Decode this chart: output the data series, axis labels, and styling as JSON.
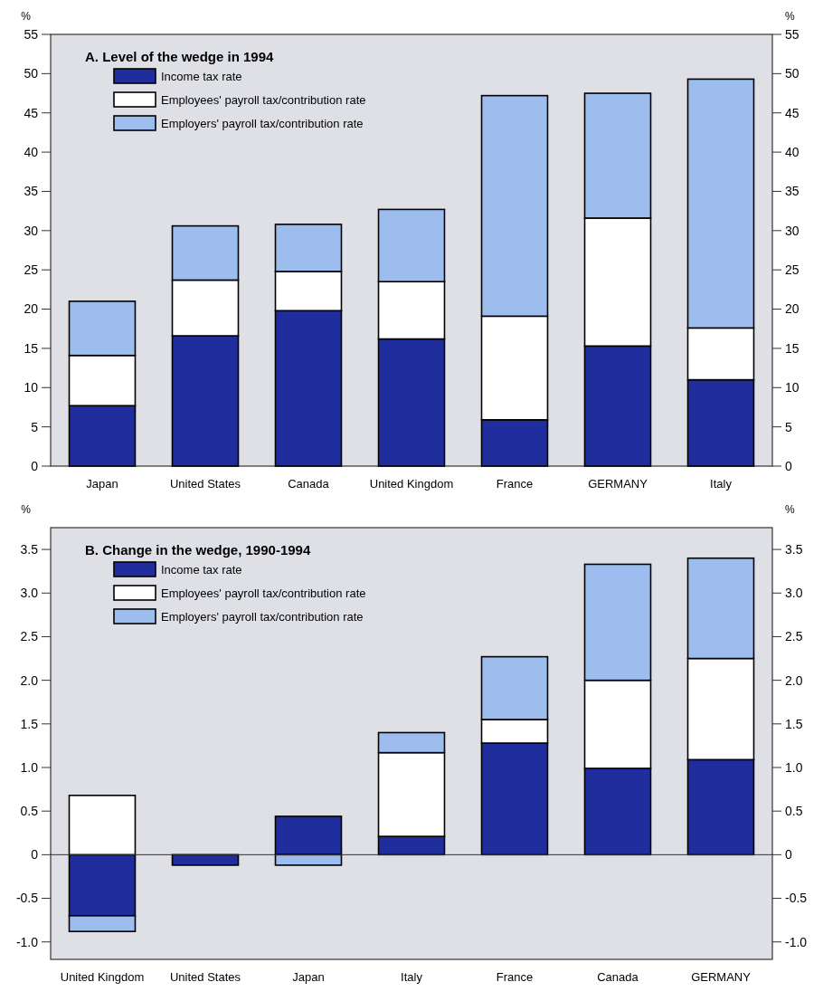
{
  "chart_data": [
    {
      "type": "bar",
      "title": "A.  Level of the wedge in 1994",
      "ylabel": "%",
      "y2label": "%",
      "stacked": true,
      "legend": "top left",
      "categories": [
        "Japan",
        "United States",
        "Canada",
        "United Kingdom",
        "France",
        "GERMANY",
        "Italy"
      ],
      "series": [
        {
          "name": "Income tax rate",
          "color": "#1f2e9c",
          "values": [
            7.7,
            16.6,
            19.8,
            16.2,
            5.9,
            15.3,
            11.0
          ]
        },
        {
          "name": "Employees' payroll tax/contribution rate",
          "color": "#ffffff",
          "values": [
            6.4,
            7.1,
            5.0,
            7.3,
            13.2,
            16.3,
            6.6
          ]
        },
        {
          "name": "Employers' payroll tax/contribution rate",
          "color": "#9dbdee",
          "values": [
            6.9,
            6.9,
            6.0,
            9.2,
            28.1,
            15.9,
            31.7
          ]
        }
      ],
      "ylim": [
        0,
        55
      ],
      "yticks": [
        0,
        5,
        10,
        15,
        20,
        25,
        30,
        35,
        40,
        45,
        50,
        55
      ],
      "y2lim": [
        0,
        55
      ],
      "y2ticks": [
        0,
        5,
        10,
        15,
        20,
        25,
        30,
        35,
        40,
        45,
        50,
        55
      ]
    },
    {
      "type": "bar",
      "title": "B.  Change in the wedge, 1990-1994",
      "ylabel": "%",
      "y2label": "%",
      "stacked": true,
      "legend": "top left",
      "categories": [
        "United Kingdom",
        "United States",
        "Japan",
        "Italy",
        "France",
        "Canada",
        "GERMANY"
      ],
      "series": [
        {
          "name": "Income tax rate",
          "color": "#1f2e9c",
          "values": [
            -0.7,
            -0.12,
            0.44,
            0.21,
            1.28,
            0.99,
            1.09
          ]
        },
        {
          "name": "Employees' payroll tax/contribution rate",
          "color": "#ffffff",
          "values": [
            0.68,
            0,
            0,
            0.96,
            0.27,
            1.01,
            1.16
          ]
        },
        {
          "name": "Employers' payroll tax/contribution rate",
          "color": "#9dbdee",
          "values": [
            -0.18,
            0,
            -0.12,
            0.23,
            0.72,
            1.33,
            1.15
          ]
        }
      ],
      "ylim": [
        -1.2,
        3.75
      ],
      "yticks": [
        {
          "value": -1,
          "label": "-1.0"
        },
        {
          "value": -0.5,
          "label": "-0.5"
        },
        0,
        {
          "value": 0.5,
          "label": "0.5"
        },
        {
          "value": 1,
          "label": "1.0"
        },
        {
          "value": 1.5,
          "label": "1.5"
        },
        {
          "value": 2,
          "label": "2.0"
        },
        {
          "value": 2.5,
          "label": "2.5"
        },
        {
          "value": 3,
          "label": "3.0"
        },
        {
          "value": 3.5,
          "label": "3.5"
        }
      ],
      "y2lim": [
        -1.2,
        3.75
      ],
      "y2ticks": [
        {
          "value": -1,
          "label": "-1.0"
        },
        {
          "value": -0.5,
          "label": "-0.5"
        },
        0,
        {
          "value": 0.5,
          "label": "0.5"
        },
        {
          "value": 1,
          "label": "1.0"
        },
        {
          "value": 1.5,
          "label": "1.5"
        },
        {
          "value": 2,
          "label": "2.0"
        },
        {
          "value": 2.5,
          "label": "2.5"
        },
        {
          "value": 3,
          "label": "3.0"
        },
        {
          "value": 3.5,
          "label": "3.5"
        }
      ]
    }
  ]
}
